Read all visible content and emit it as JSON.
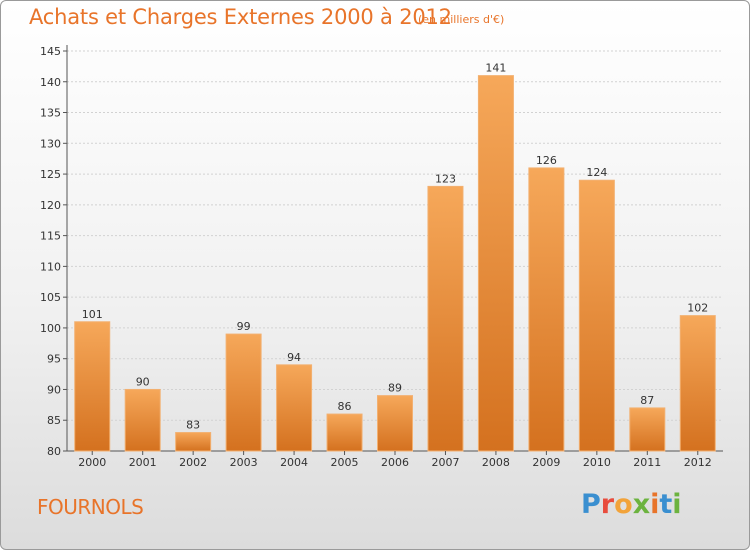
{
  "header": {
    "title": "Achats et Charges Externes 2000 à 2012",
    "unit": "(en milliers d'€)"
  },
  "footer": {
    "commune": "FOURNOLS",
    "logo_letters": [
      "P",
      "r",
      "o",
      "x",
      "i",
      "t",
      "i"
    ]
  },
  "colors": {
    "accent": "#e8742a",
    "bar_light": "#f6a85a",
    "bar_dark": "#d4711f",
    "logo": [
      "#3a8fd0",
      "#e84c3d",
      "#f2a33a",
      "#6cb33f",
      "#e8742a",
      "#3a8fd0",
      "#6cb33f"
    ]
  },
  "chart_data": {
    "type": "bar",
    "title": "Achats et Charges Externes 2000 à 2012",
    "subtitle": "(en milliers d'€)",
    "categories": [
      "2000",
      "2001",
      "2002",
      "2003",
      "2004",
      "2005",
      "2006",
      "2007",
      "2008",
      "2009",
      "2010",
      "2011",
      "2012"
    ],
    "values": [
      101,
      90,
      83,
      99,
      94,
      86,
      89,
      123,
      141,
      126,
      124,
      87,
      102
    ],
    "ylim": [
      80,
      145
    ],
    "yticks": [
      80,
      85,
      90,
      95,
      100,
      105,
      110,
      115,
      120,
      125,
      130,
      135,
      140,
      145
    ],
    "grid": true,
    "legend": "none"
  }
}
